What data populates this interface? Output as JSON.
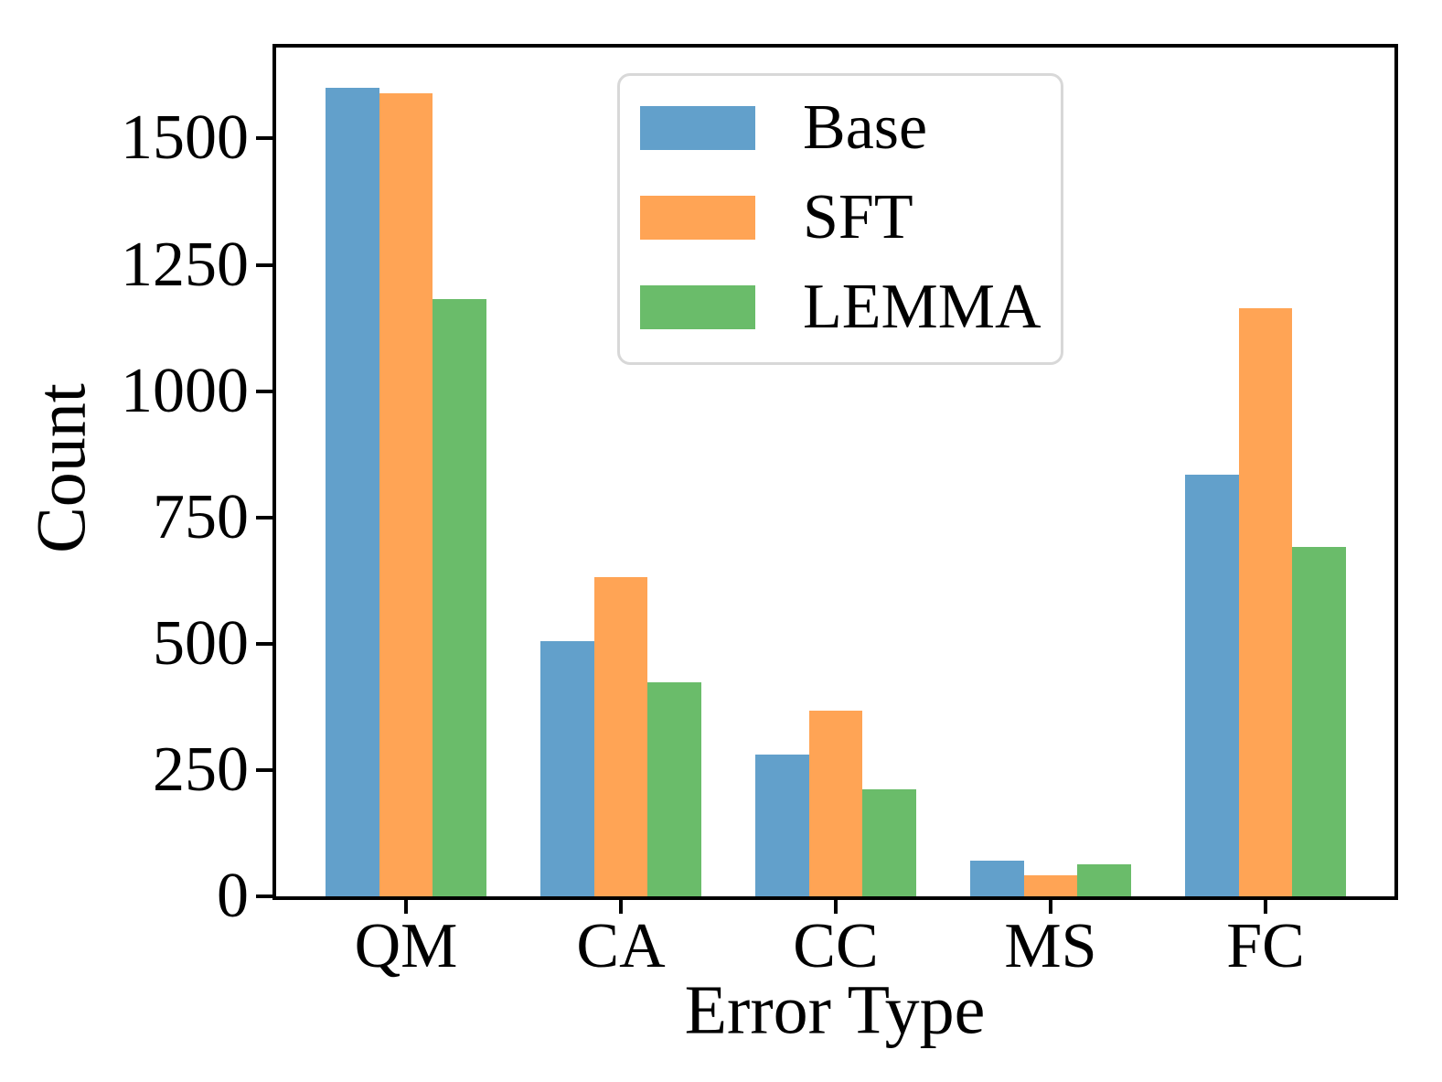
{
  "chart_data": {
    "type": "bar",
    "title": "",
    "xlabel": "Error Type",
    "ylabel": "Count",
    "categories": [
      "QM",
      "CA",
      "CC",
      "MS",
      "FC"
    ],
    "series": [
      {
        "name": "Base",
        "color": "#62A0CB",
        "values": [
          1600,
          505,
          281,
          71,
          834
        ]
      },
      {
        "name": "SFT",
        "color": "#FFA455",
        "values": [
          1590,
          632,
          367,
          42,
          1164
        ]
      },
      {
        "name": "LEMMA",
        "color": "#6ABC6A",
        "values": [
          1183,
          424,
          212,
          64,
          692
        ]
      }
    ],
    "ylim": [
      0,
      1680
    ],
    "yticks": [
      0,
      250,
      500,
      750,
      1000,
      1250,
      1500
    ],
    "grid": false,
    "legend_position": "upper-center-inside",
    "spine_color": "#000000",
    "legend_border_color": "#d8d8d8"
  }
}
